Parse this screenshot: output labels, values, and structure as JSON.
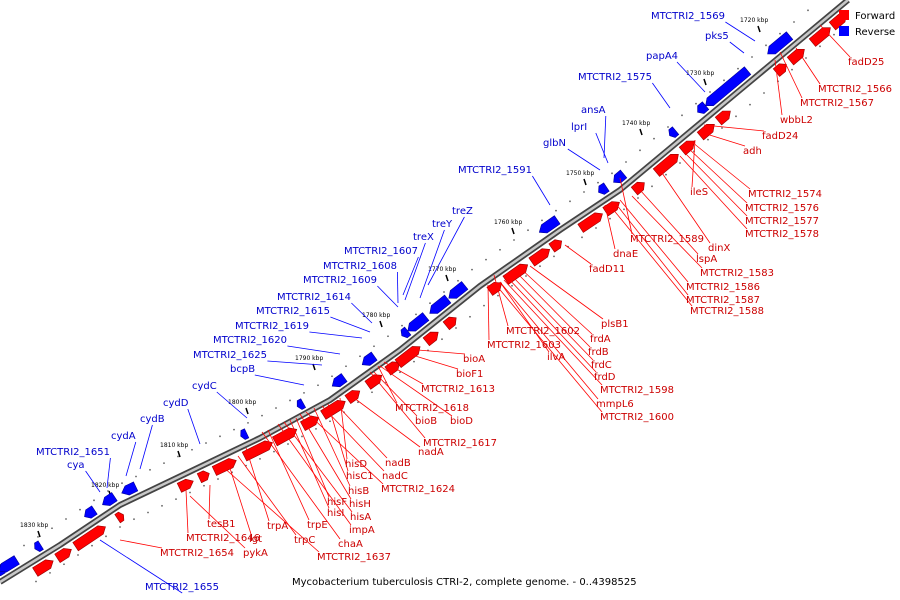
{
  "caption": "Mycobacterium tuberculosis CTRI-2, complete genome. - 0..4398525",
  "legend": [
    {
      "label": "Forward",
      "color": "#ff0000"
    },
    {
      "label": "Reverse",
      "color": "#0000ff"
    }
  ],
  "colors": {
    "forward": "#ff0000",
    "reverse": "#0000ff",
    "forward_label": "#cc0000",
    "reverse_label": "#0000cc",
    "backbone": "#777777"
  },
  "ticks": [
    "1720 kbp",
    "1730 kbp",
    "1740 kbp",
    "1750 kbp",
    "1760 kbp",
    "1770 kbp",
    "1780 kbp",
    "1790 kbp",
    "1800 kbp",
    "1810 kbp",
    "1820 kbp",
    "1830 kbp"
  ],
  "reverse_labels": [
    "MTCTRI2_1569",
    "pks5",
    "papA4",
    "MTCTRI2_1575",
    "ansA",
    "lprI",
    "glbN",
    "MTCTRI2_1591",
    "treZ",
    "treY",
    "treX",
    "MTCTRI2_1607",
    "MTCTRI2_1608",
    "MTCTRI2_1609",
    "MTCTRI2_1614",
    "MTCTRI2_1615",
    "MTCTRI2_1619",
    "MTCTRI2_1620",
    "MTCTRI2_1625",
    "bcpB",
    "cydC",
    "cydD",
    "cydB",
    "cydA",
    "MTCTRI2_1651",
    "cya",
    "MTCTRI2_1655"
  ],
  "forward_labels": [
    "fadD25",
    "MTCTRI2_1566",
    "MTCTRI2_1567",
    "wbbL2",
    "fadD24",
    "adh",
    "ileS",
    "MTCTRI2_1574",
    "MTCTRI2_1576",
    "MTCTRI2_1577",
    "MTCTRI2_1578",
    "dinX",
    "MTCTRI2_1589",
    "dnaE",
    "lspA",
    "MTCTRI2_1583",
    "MTCTRI2_1586",
    "MTCTRI2_1587",
    "MTCTRI2_1588",
    "fadD11",
    "plsB1",
    "MTCTRI2_1602",
    "MTCTRI2_1603",
    "frdA",
    "frdB",
    "ilvA",
    "frdC",
    "frdD",
    "MTCTRI2_1598",
    "mmpL6",
    "MTCTRI2_1600",
    "bioA",
    "bioF1",
    "MTCTRI2_1613",
    "MTCTRI2_1618",
    "bioB",
    "bioD",
    "MTCTRI2_1617",
    "nadA",
    "hisD",
    "nadB",
    "hisC1",
    "nadC",
    "hisB",
    "MTCTRI2_1624",
    "hisH",
    "hisF",
    "hisI",
    "hisA",
    "impA",
    "trpE",
    "chaA",
    "trpA",
    "lgt",
    "trpC",
    "MTCTRI2_1637",
    "tesB1",
    "MTCTRI2_1646",
    "MTCTRI2_1654",
    "pykA"
  ]
}
